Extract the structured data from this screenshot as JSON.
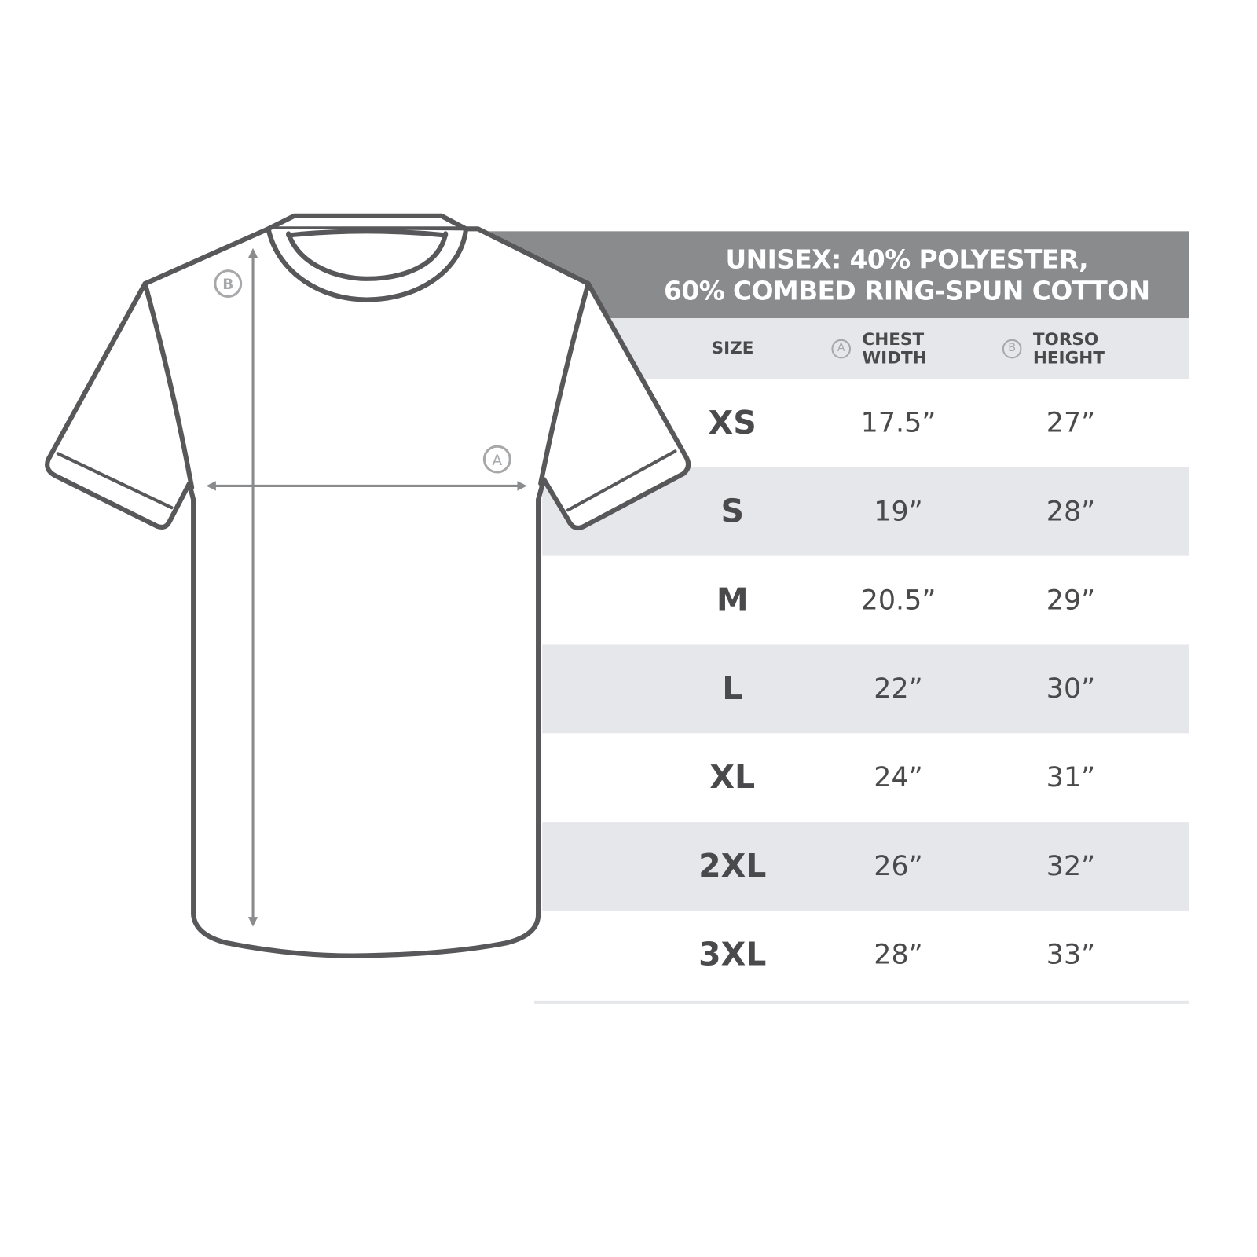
{
  "title": {
    "line1": "UNISEX: 40% POLYESTER,",
    "line2": "60% COMBED RING-SPUN COTTON"
  },
  "columns": {
    "size": "SIZE",
    "chest": {
      "marker": "A",
      "label1": "CHEST",
      "label2": "WIDTH"
    },
    "torso": {
      "marker": "B",
      "label1": "TORSO",
      "label2": "HEIGHT"
    }
  },
  "rows": [
    {
      "size": "XS",
      "chest": "17.5”",
      "torso": "27”"
    },
    {
      "size": "S",
      "chest": "19”",
      "torso": "28”"
    },
    {
      "size": "M",
      "chest": "20.5”",
      "torso": "29”"
    },
    {
      "size": "L",
      "chest": "22”",
      "torso": "30”"
    },
    {
      "size": "XL",
      "chest": "24”",
      "torso": "31”"
    },
    {
      "size": "2XL",
      "chest": "26”",
      "torso": "32”"
    },
    {
      "size": "3XL",
      "chest": "28”",
      "torso": "33”"
    }
  ],
  "diagram": {
    "marker_a": "A",
    "marker_b": "B"
  },
  "colors": {
    "header": "#8a8b8d",
    "stripe": "#e6e7ea",
    "text": "#4a4a4c",
    "outline": "#58585a"
  }
}
